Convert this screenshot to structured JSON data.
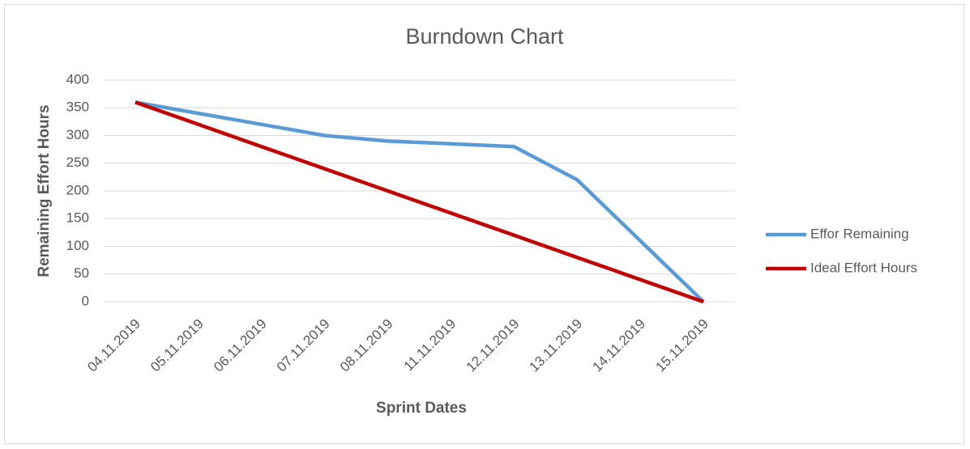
{
  "chart_data": {
    "type": "line",
    "title": "Burndown Chart",
    "x_label": "Sprint Dates",
    "y_label": "Remaining Effort Hours",
    "categories": [
      "04.11.2019",
      "05.11.2019",
      "06.11.2019",
      "07.11.2019",
      "08.11.2019",
      "11.11.2019",
      "12.11.2019",
      "13.11.2019",
      "14.11.2019",
      "15.11.2019"
    ],
    "series": [
      {
        "name": "Effor Remaining",
        "color": "#5b9bd5",
        "values": [
          360,
          340,
          320,
          300,
          290,
          285,
          280,
          220,
          110,
          0
        ]
      },
      {
        "name": "Ideal Effort Hours",
        "color": "#c00000",
        "values": [
          360,
          320,
          280,
          240,
          200,
          160,
          120,
          80,
          40,
          0
        ]
      }
    ],
    "ylim": [
      0,
      400
    ],
    "yticks": [
      0,
      50,
      100,
      150,
      200,
      250,
      300,
      350,
      400
    ],
    "grid": true,
    "legend": "right"
  }
}
